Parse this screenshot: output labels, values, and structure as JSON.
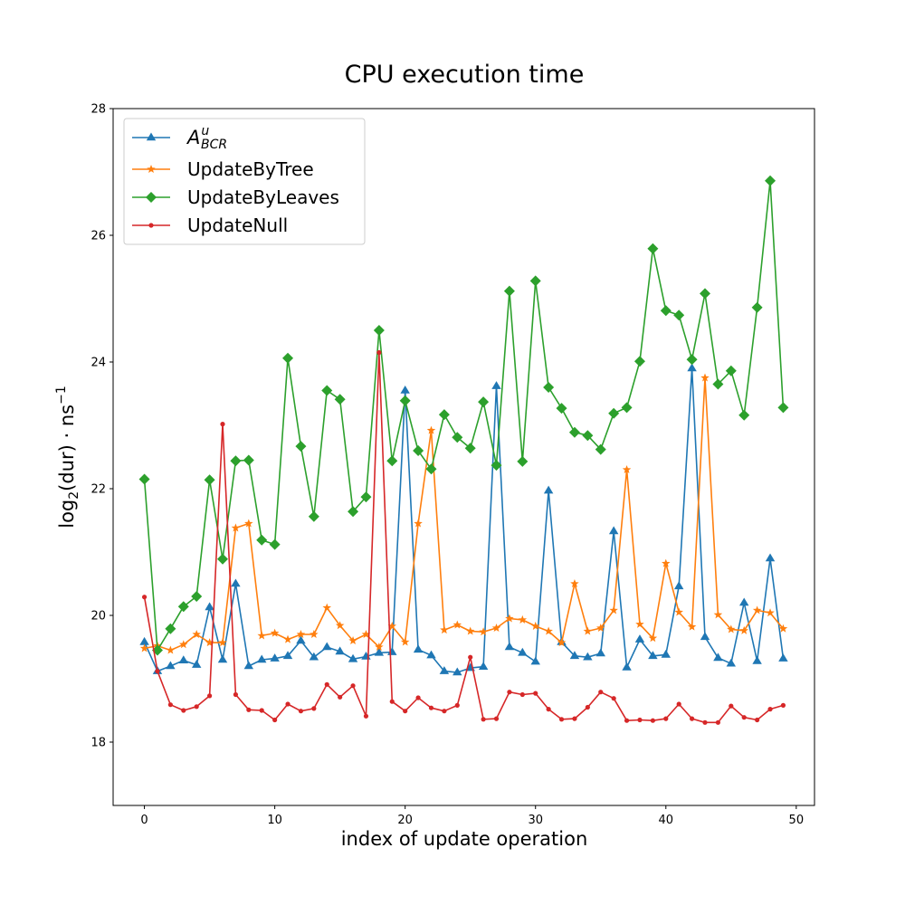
{
  "chart_data": {
    "type": "line",
    "title": "CPU execution time",
    "xlabel": "index of update operation",
    "ylabel": "log2(dur) · ns-1",
    "ylabel_parts": {
      "pre": "log",
      "sub": "2",
      "mid": "(dur) · ns",
      "sup": "−1"
    },
    "xlim": [
      -2.4,
      51.4
    ],
    "ylim": [
      17.0,
      28.0
    ],
    "xticks": [
      0,
      10,
      20,
      30,
      40,
      50
    ],
    "yticks": [
      18,
      20,
      22,
      24,
      26,
      28
    ],
    "grid": false,
    "legend_position": "top-left",
    "x": [
      0,
      1,
      2,
      3,
      4,
      5,
      6,
      7,
      8,
      9,
      10,
      11,
      12,
      13,
      14,
      15,
      16,
      17,
      18,
      19,
      20,
      21,
      22,
      23,
      24,
      25,
      26,
      27,
      28,
      29,
      30,
      31,
      32,
      33,
      34,
      35,
      36,
      37,
      38,
      39,
      40,
      41,
      42,
      43,
      44,
      45,
      46,
      47,
      48,
      49
    ],
    "series": [
      {
        "name": "A^u_BCR",
        "legend": {
          "base": "A",
          "sup": "u",
          "sub": "BCR"
        },
        "color": "#1f77b4",
        "marker": "triangle",
        "values": [
          19.58,
          19.12,
          19.2,
          19.29,
          19.22,
          20.13,
          19.3,
          20.5,
          19.2,
          19.3,
          19.32,
          19.36,
          19.6,
          19.34,
          19.5,
          19.43,
          19.31,
          19.35,
          19.41,
          19.42,
          23.55,
          19.46,
          19.37,
          19.12,
          19.1,
          19.17,
          19.19,
          23.62,
          19.5,
          19.41,
          19.27,
          21.97,
          19.58,
          19.36,
          19.34,
          19.4,
          21.33,
          19.18,
          19.62,
          19.36,
          19.38,
          20.46,
          23.9,
          19.66,
          19.33,
          19.24,
          20.2,
          19.28,
          20.9,
          19.32
        ]
      },
      {
        "name": "UpdateByTree",
        "color": "#ff7f0e",
        "marker": "star",
        "values": [
          19.48,
          19.52,
          19.45,
          19.54,
          19.7,
          19.57,
          19.57,
          21.38,
          21.45,
          19.68,
          19.72,
          19.62,
          19.7,
          19.7,
          20.12,
          19.84,
          19.6,
          19.7,
          19.5,
          19.83,
          19.58,
          21.45,
          22.92,
          19.77,
          19.85,
          19.75,
          19.74,
          19.8,
          19.95,
          19.93,
          19.83,
          19.75,
          19.57,
          20.5,
          19.75,
          19.8,
          20.08,
          22.3,
          19.86,
          19.64,
          20.82,
          20.05,
          19.82,
          23.75,
          20.01,
          19.78,
          19.76,
          20.08,
          20.04,
          19.79
        ]
      },
      {
        "name": "UpdateByLeaves",
        "color": "#2ca02c",
        "marker": "diamond",
        "values": [
          22.15,
          19.45,
          19.79,
          20.14,
          20.3,
          22.14,
          20.89,
          22.44,
          22.45,
          21.19,
          21.12,
          24.06,
          22.67,
          21.56,
          23.55,
          23.41,
          21.64,
          21.87,
          24.5,
          22.44,
          23.39,
          22.6,
          22.31,
          23.17,
          22.81,
          22.64,
          23.37,
          22.37,
          25.12,
          22.43,
          25.28,
          23.6,
          23.27,
          22.89,
          22.84,
          22.62,
          23.19,
          23.28,
          24.01,
          25.79,
          24.81,
          24.74,
          24.04,
          25.08,
          23.65,
          23.86,
          23.16,
          24.86,
          26.86,
          23.28
        ]
      },
      {
        "name": "UpdateNull",
        "color": "#d62728",
        "marker": "circle",
        "values": [
          20.29,
          19.12,
          18.59,
          18.5,
          18.56,
          18.73,
          23.02,
          18.75,
          18.51,
          18.5,
          18.35,
          18.6,
          18.49,
          18.53,
          18.91,
          18.71,
          18.89,
          18.41,
          24.15,
          18.64,
          18.49,
          18.7,
          18.54,
          18.49,
          18.58,
          19.34,
          18.36,
          18.37,
          18.79,
          18.75,
          18.77,
          18.52,
          18.36,
          18.37,
          18.55,
          18.79,
          18.69,
          18.34,
          18.35,
          18.34,
          18.37,
          18.6,
          18.37,
          18.31,
          18.31,
          18.57,
          18.39,
          18.35,
          18.52,
          18.58
        ]
      }
    ]
  }
}
